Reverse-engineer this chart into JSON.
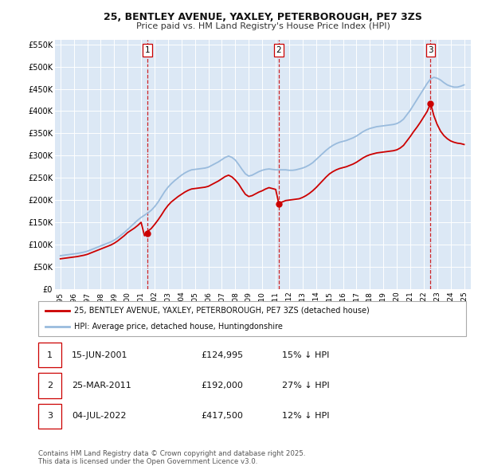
{
  "title": "25, BENTLEY AVENUE, YAXLEY, PETERBOROUGH, PE7 3ZS",
  "subtitle": "Price paid vs. HM Land Registry's House Price Index (HPI)",
  "background_color": "#ffffff",
  "plot_bg_color": "#dce8f5",
  "grid_color": "#ffffff",
  "ylim": [
    0,
    560000
  ],
  "yticks": [
    0,
    50000,
    100000,
    150000,
    200000,
    250000,
    300000,
    350000,
    400000,
    450000,
    500000,
    550000
  ],
  "ytick_labels": [
    "£0",
    "£50K",
    "£100K",
    "£150K",
    "£200K",
    "£250K",
    "£300K",
    "£350K",
    "£400K",
    "£450K",
    "£500K",
    "£550K"
  ],
  "xlim_start": 1994.6,
  "xlim_end": 2025.5,
  "xticks": [
    1995,
    1996,
    1997,
    1998,
    1999,
    2000,
    2001,
    2002,
    2003,
    2004,
    2005,
    2006,
    2007,
    2008,
    2009,
    2010,
    2011,
    2012,
    2013,
    2014,
    2015,
    2016,
    2017,
    2018,
    2019,
    2020,
    2021,
    2022,
    2023,
    2024,
    2025
  ],
  "sale_color": "#cc0000",
  "hpi_color": "#99bbdd",
  "sale_marker_color": "#cc0000",
  "vline_color": "#cc0000",
  "sale_dates": [
    2001.45,
    2011.23,
    2022.51
  ],
  "sale_prices": [
    124995,
    192000,
    417500
  ],
  "sale_labels": [
    "1",
    "2",
    "3"
  ],
  "legend_sale_label": "25, BENTLEY AVENUE, YAXLEY, PETERBOROUGH, PE7 3ZS (detached house)",
  "legend_hpi_label": "HPI: Average price, detached house, Huntingdonshire",
  "table_rows": [
    {
      "num": "1",
      "date": "15-JUN-2001",
      "price": "£124,995",
      "change": "15% ↓ HPI"
    },
    {
      "num": "2",
      "date": "25-MAR-2011",
      "price": "£192,000",
      "change": "27% ↓ HPI"
    },
    {
      "num": "3",
      "date": "04-JUL-2022",
      "price": "£417,500",
      "change": "12% ↓ HPI"
    }
  ],
  "footnote": "Contains HM Land Registry data © Crown copyright and database right 2025.\nThis data is licensed under the Open Government Licence v3.0.",
  "hpi_data_x": [
    1995.0,
    1995.25,
    1995.5,
    1995.75,
    1996.0,
    1996.25,
    1996.5,
    1996.75,
    1997.0,
    1997.25,
    1997.5,
    1997.75,
    1998.0,
    1998.25,
    1998.5,
    1998.75,
    1999.0,
    1999.25,
    1999.5,
    1999.75,
    2000.0,
    2000.25,
    2000.5,
    2000.75,
    2001.0,
    2001.25,
    2001.5,
    2001.75,
    2002.0,
    2002.25,
    2002.5,
    2002.75,
    2003.0,
    2003.25,
    2003.5,
    2003.75,
    2004.0,
    2004.25,
    2004.5,
    2004.75,
    2005.0,
    2005.25,
    2005.5,
    2005.75,
    2006.0,
    2006.25,
    2006.5,
    2006.75,
    2007.0,
    2007.25,
    2007.5,
    2007.75,
    2008.0,
    2008.25,
    2008.5,
    2008.75,
    2009.0,
    2009.25,
    2009.5,
    2009.75,
    2010.0,
    2010.25,
    2010.5,
    2010.75,
    2011.0,
    2011.25,
    2011.5,
    2011.75,
    2012.0,
    2012.25,
    2012.5,
    2012.75,
    2013.0,
    2013.25,
    2013.5,
    2013.75,
    2014.0,
    2014.25,
    2014.5,
    2014.75,
    2015.0,
    2015.25,
    2015.5,
    2015.75,
    2016.0,
    2016.25,
    2016.5,
    2016.75,
    2017.0,
    2017.25,
    2017.5,
    2017.75,
    2018.0,
    2018.25,
    2018.5,
    2018.75,
    2019.0,
    2019.25,
    2019.5,
    2019.75,
    2020.0,
    2020.25,
    2020.5,
    2020.75,
    2021.0,
    2021.25,
    2021.5,
    2021.75,
    2022.0,
    2022.25,
    2022.5,
    2022.75,
    2023.0,
    2023.25,
    2023.5,
    2023.75,
    2024.0,
    2024.25,
    2024.5,
    2024.75,
    2025.0
  ],
  "hpi_data_y": [
    75000,
    76000,
    77000,
    78000,
    79000,
    80000,
    81500,
    83000,
    85000,
    88000,
    91000,
    94000,
    97000,
    100000,
    103000,
    106000,
    110000,
    115000,
    121000,
    127000,
    134000,
    141000,
    148000,
    155000,
    161000,
    166000,
    171000,
    177000,
    185000,
    195000,
    207000,
    219000,
    229000,
    237000,
    244000,
    250000,
    256000,
    261000,
    265000,
    268000,
    269000,
    270000,
    271000,
    272000,
    274000,
    278000,
    282000,
    286000,
    291000,
    296000,
    299000,
    296000,
    290000,
    280000,
    269000,
    259000,
    254000,
    256000,
    260000,
    264000,
    267000,
    269000,
    270000,
    269000,
    268000,
    268000,
    268000,
    268000,
    267000,
    267000,
    268000,
    270000,
    272000,
    275000,
    279000,
    284000,
    291000,
    298000,
    305000,
    312000,
    318000,
    323000,
    327000,
    330000,
    332000,
    334000,
    337000,
    340000,
    344000,
    349000,
    354000,
    358000,
    361000,
    363000,
    365000,
    366000,
    367000,
    368000,
    369000,
    370000,
    372000,
    376000,
    382000,
    392000,
    402000,
    414000,
    426000,
    438000,
    450000,
    462000,
    472000,
    476000,
    474000,
    470000,
    464000,
    459000,
    456000,
    454000,
    454000,
    456000,
    459000
  ],
  "sale_line_x": [
    1995.0,
    1995.25,
    1995.5,
    1995.75,
    1996.0,
    1996.25,
    1996.5,
    1996.75,
    1997.0,
    1997.25,
    1997.5,
    1997.75,
    1998.0,
    1998.25,
    1998.5,
    1998.75,
    1999.0,
    1999.25,
    1999.5,
    1999.75,
    2000.0,
    2000.25,
    2000.5,
    2000.75,
    2001.0,
    2001.25,
    2001.45,
    2001.45,
    2001.5,
    2001.75,
    2002.0,
    2002.25,
    2002.5,
    2002.75,
    2003.0,
    2003.25,
    2003.5,
    2003.75,
    2004.0,
    2004.25,
    2004.5,
    2004.75,
    2005.0,
    2005.25,
    2005.5,
    2005.75,
    2006.0,
    2006.25,
    2006.5,
    2006.75,
    2007.0,
    2007.25,
    2007.5,
    2007.75,
    2008.0,
    2008.25,
    2008.5,
    2008.75,
    2009.0,
    2009.25,
    2009.5,
    2009.75,
    2010.0,
    2010.25,
    2010.5,
    2010.75,
    2011.0,
    2011.23,
    2011.23,
    2011.5,
    2011.75,
    2012.0,
    2012.25,
    2012.5,
    2012.75,
    2013.0,
    2013.25,
    2013.5,
    2013.75,
    2014.0,
    2014.25,
    2014.5,
    2014.75,
    2015.0,
    2015.25,
    2015.5,
    2015.75,
    2016.0,
    2016.25,
    2016.5,
    2016.75,
    2017.0,
    2017.25,
    2017.5,
    2017.75,
    2018.0,
    2018.25,
    2018.5,
    2018.75,
    2019.0,
    2019.25,
    2019.5,
    2019.75,
    2020.0,
    2020.25,
    2020.5,
    2020.75,
    2021.0,
    2021.25,
    2021.5,
    2021.75,
    2022.0,
    2022.25,
    2022.51,
    2022.51,
    2022.75,
    2023.0,
    2023.25,
    2023.5,
    2023.75,
    2024.0,
    2024.25,
    2024.5,
    2024.75,
    2025.0
  ],
  "sale_line_y": [
    68000,
    69000,
    70000,
    71000,
    72000,
    73000,
    74500,
    76000,
    78000,
    81000,
    84000,
    87000,
    90000,
    93000,
    96000,
    99000,
    103000,
    108000,
    114000,
    120000,
    127000,
    132000,
    137000,
    143000,
    150000,
    120000,
    124995,
    124995,
    130000,
    136000,
    145000,
    155000,
    166000,
    178000,
    188000,
    196000,
    202000,
    208000,
    213000,
    218000,
    222000,
    225000,
    226000,
    227000,
    228000,
    229000,
    231000,
    235000,
    239000,
    243000,
    248000,
    253000,
    256000,
    252000,
    245000,
    236000,
    224000,
    213000,
    208000,
    210000,
    214000,
    218000,
    221000,
    225000,
    228000,
    226000,
    224000,
    192000,
    192000,
    196000,
    199000,
    200000,
    201000,
    202000,
    203000,
    206000,
    210000,
    215000,
    221000,
    228000,
    236000,
    244000,
    252000,
    259000,
    264000,
    268000,
    271000,
    273000,
    275000,
    278000,
    281000,
    285000,
    290000,
    295000,
    299000,
    302000,
    304000,
    306000,
    307000,
    308000,
    309000,
    310000,
    311000,
    313000,
    317000,
    323000,
    333000,
    343000,
    354000,
    364000,
    375000,
    387000,
    399000,
    417500,
    417500,
    390000,
    370000,
    355000,
    345000,
    338000,
    333000,
    330000,
    328000,
    327000,
    325000
  ]
}
